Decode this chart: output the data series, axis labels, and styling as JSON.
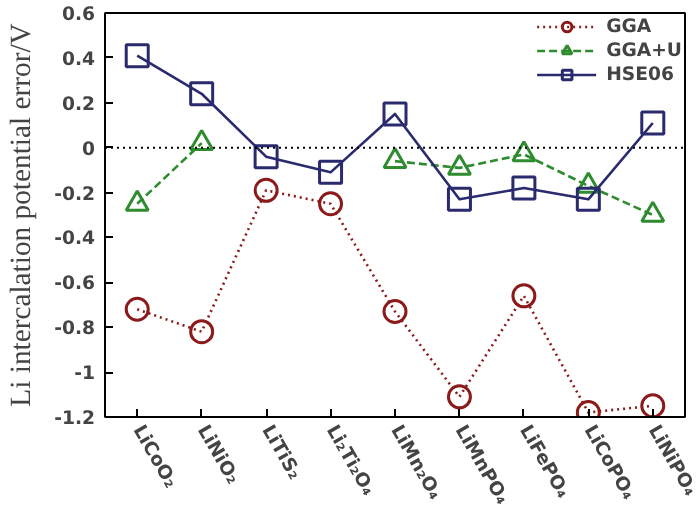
{
  "chart_data": {
    "type": "line",
    "ylabel": "Li intercalation potential error/V",
    "categories": [
      "LiCoO₂",
      "LiNiO₂",
      "LiTiS₂",
      "Li₂Ti₂O₄",
      "LiMn₂O₄",
      "LiMnPO₄",
      "LiFePO₄",
      "LiCoPO₄",
      "LiNiPO₄"
    ],
    "series": [
      {
        "name": "GGA",
        "color": "#8b1a1a",
        "marker": "circle",
        "line_style": "dotted",
        "values": [
          -0.72,
          -0.82,
          -0.19,
          -0.25,
          -0.73,
          -1.11,
          -0.66,
          -1.18,
          -1.15
        ]
      },
      {
        "name": "GGA+U",
        "color": "#2e8b2e",
        "marker": "triangle",
        "line_style": "dashed",
        "values": [
          -0.25,
          0.02,
          null,
          null,
          -0.06,
          -0.09,
          -0.03,
          -0.17,
          -0.3
        ]
      },
      {
        "name": "HSE06",
        "color": "#2a2a6e",
        "marker": "square",
        "line_style": "solid",
        "values": [
          0.41,
          0.24,
          -0.04,
          -0.11,
          0.15,
          -0.23,
          -0.18,
          -0.23,
          0.11
        ]
      }
    ],
    "ylim": [
      -1.2,
      0.6
    ],
    "yticks": [
      -1.2,
      -1,
      -0.8,
      -0.6,
      -0.4,
      -0.2,
      0,
      0.2,
      0.4,
      0.6
    ],
    "ref_lines": [
      {
        "axis": "y",
        "value": 0,
        "color": "#000000",
        "line_style": "dotted"
      }
    ],
    "grid": false,
    "legend": "top right"
  }
}
